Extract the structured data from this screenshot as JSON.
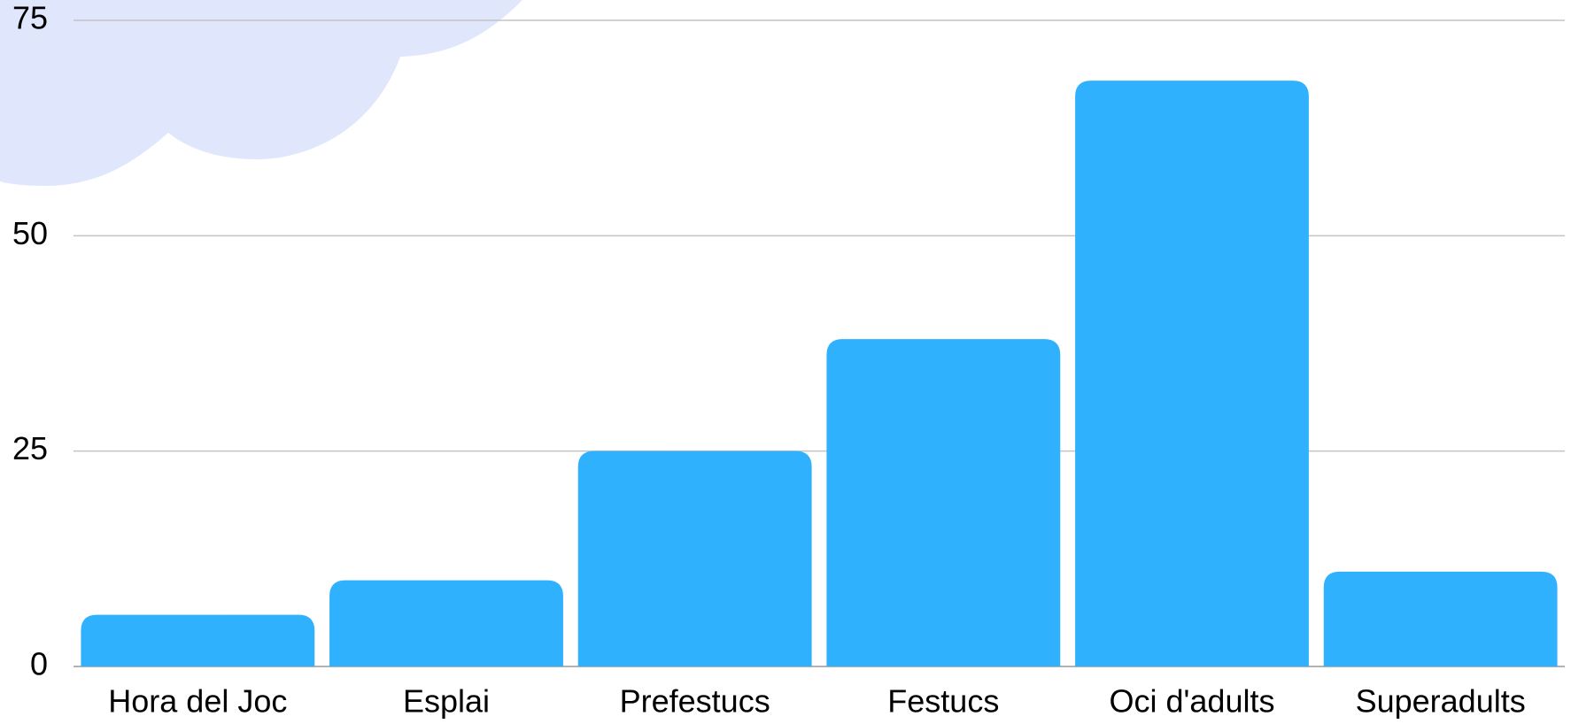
{
  "chart_data": {
    "type": "bar",
    "categories": [
      "Hora del Joc",
      "Esplai",
      "Prefestucs",
      "Festucs",
      "Oci d'adults",
      "Superadults"
    ],
    "values": [
      6,
      10,
      25,
      38,
      68,
      11
    ],
    "color": "#2fb1fd",
    "ylim": [
      0,
      75
    ],
    "yticks": [
      0,
      25,
      50,
      75
    ],
    "grid": true
  }
}
